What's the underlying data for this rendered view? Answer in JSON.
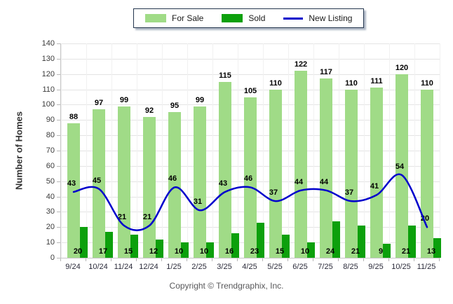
{
  "legend": {
    "items": [
      {
        "label": "For Sale",
        "type": "box",
        "color": "#a0db87"
      },
      {
        "label": "Sold",
        "type": "box",
        "color": "#0ca00c"
      },
      {
        "label": "New Listing",
        "type": "line",
        "color": "#0000cc"
      }
    ]
  },
  "chart_data": {
    "type": "bar",
    "title": "",
    "categories": [
      "9/24",
      "10/24",
      "11/24",
      "12/24",
      "1/25",
      "2/25",
      "3/25",
      "4/25",
      "5/25",
      "6/25",
      "7/25",
      "8/25",
      "9/25",
      "10/25",
      "11/25"
    ],
    "series": [
      {
        "name": "For Sale",
        "type": "bar",
        "color": "#a0db87",
        "values": [
          88,
          97,
          99,
          92,
          95,
          99,
          115,
          105,
          110,
          122,
          117,
          110,
          111,
          120,
          110
        ]
      },
      {
        "name": "Sold",
        "type": "bar",
        "color": "#0ca00c",
        "values": [
          20,
          17,
          15,
          12,
          10,
          10,
          16,
          23,
          15,
          10,
          24,
          21,
          9,
          21,
          13
        ]
      },
      {
        "name": "New Listing",
        "type": "line",
        "color": "#0000cc",
        "values": [
          43,
          45,
          21,
          21,
          46,
          31,
          43,
          46,
          37,
          44,
          44,
          37,
          41,
          54,
          20
        ]
      }
    ],
    "xlabel": "",
    "ylabel": "Number of Homes",
    "ylim": [
      0,
      140
    ],
    "ytick_step": 10,
    "grid": true,
    "legend_position": "top-center"
  },
  "footer": {
    "copyright": "Copyright © Trendgraphix, Inc."
  },
  "colors": {
    "gridline": "#e4e4e4",
    "axis": "#c6c6c6",
    "value_label": "#000000",
    "background": "#ffffff"
  }
}
